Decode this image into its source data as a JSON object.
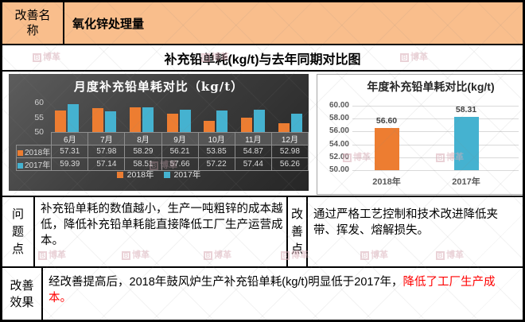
{
  "header": {
    "label": "改善名称",
    "title": "氧化锌处理量"
  },
  "section_title": "补充铅单耗(kg/t)与去年同期对比图",
  "chart_data": [
    {
      "type": "bar",
      "theme": "dark",
      "title": "月度补充铅单耗对比（kg/t）",
      "categories": [
        "6月",
        "7月",
        "8月",
        "9月",
        "10月",
        "11月",
        "12月"
      ],
      "series": [
        {
          "name": "2018年",
          "color": "#ED7D31",
          "values": [
            57.31,
            57.98,
            58.29,
            56.21,
            53.85,
            54.87,
            52.98
          ]
        },
        {
          "name": "2017年",
          "color": "#45B2D0",
          "values": [
            59.39,
            57.14,
            58.51,
            57.66,
            57.22,
            57.44,
            56.26
          ]
        }
      ],
      "ylim": [
        50,
        60
      ],
      "yticks": [
        50,
        55,
        60
      ],
      "legend_position": "bottom",
      "data_table": true,
      "grid": false
    },
    {
      "type": "bar",
      "theme": "light",
      "title": "年度补充铅单耗对比(kg/t)",
      "categories": [
        "2018年",
        "2017年"
      ],
      "values": [
        56.6,
        58.31
      ],
      "value_labels": [
        "56.60",
        "58.31"
      ],
      "colors": [
        "#ED7D31",
        "#45B2D0"
      ],
      "ylim": [
        50,
        60
      ],
      "ytick_labels": [
        "50.00",
        "52.00",
        "54.00",
        "56.00",
        "58.00",
        "60.00"
      ],
      "grid": true,
      "legend_position": "none"
    }
  ],
  "problem": {
    "label": "问题点",
    "text": "补充铅单耗的数值越小，生产一吨粗锌的成本越低，降低补充铅单耗能直接降低工厂生产运营成本。"
  },
  "improvement": {
    "label": "改善点",
    "text": "通过严格工艺控制和技术改进降低夹带、挥发、熔解损失。"
  },
  "effect": {
    "label": "改善效果",
    "text_black": "经改善提高后，2018年鼓风炉生产补充铅单耗(kg/t)明显低于2017年，",
    "text_red": "降低了工厂生产成本。"
  },
  "watermark": {
    "logo_letter": "B",
    "text": "博革"
  },
  "colors": {
    "header_bg": "#F9BE8C",
    "orange": "#ED7D31",
    "teal": "#45B2D0",
    "red": "#FF0000"
  }
}
